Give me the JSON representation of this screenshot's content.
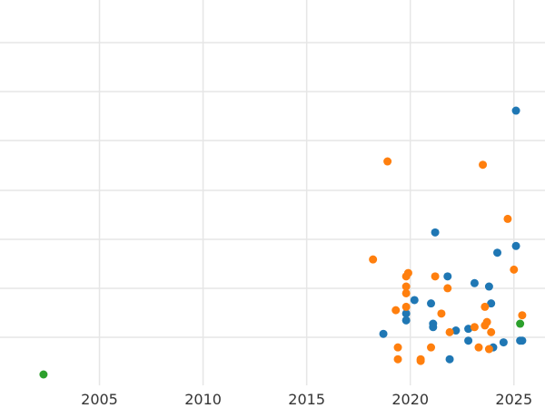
{
  "chart_data": {
    "type": "scatter",
    "title": "",
    "xlabel": "",
    "ylabel": "",
    "xlim": [
      2000.2,
      2026.5
    ],
    "ylim": [
      0,
      1
    ],
    "grid": true,
    "legend": "none",
    "x_ticks": [
      2005,
      2010,
      2015,
      2020,
      2025
    ],
    "x_tick_labels": [
      "2005",
      "2010",
      "2015",
      "2020",
      "2025"
    ],
    "y_gridlines": [
      0.06,
      0.22,
      0.38,
      0.54,
      0.7,
      0.86,
      1.0
    ],
    "series": [
      {
        "color": "#1f77b4",
        "points": [
          [
            2025.1,
            0.78
          ],
          [
            2021.2,
            0.42
          ],
          [
            2024.2,
            0.36
          ],
          [
            2025.1,
            0.38
          ],
          [
            2021.8,
            0.29
          ],
          [
            2023.1,
            0.27
          ],
          [
            2023.8,
            0.26
          ],
          [
            2020.2,
            0.22
          ],
          [
            2021.0,
            0.21
          ],
          [
            2023.9,
            0.21
          ],
          [
            2019.8,
            0.18
          ],
          [
            2019.8,
            0.16
          ],
          [
            2021.1,
            0.15
          ],
          [
            2021.1,
            0.14
          ],
          [
            2022.2,
            0.13
          ],
          [
            2022.8,
            0.135
          ],
          [
            2018.7,
            0.12
          ],
          [
            2022.8,
            0.1
          ],
          [
            2024.5,
            0.095
          ],
          [
            2025.3,
            0.1
          ],
          [
            2025.4,
            0.1
          ],
          [
            2024.0,
            0.08
          ],
          [
            2021.9,
            0.045
          ]
        ]
      },
      {
        "color": "#ff7f0e",
        "points": [
          [
            2018.9,
            0.63
          ],
          [
            2023.5,
            0.62
          ],
          [
            2024.7,
            0.46
          ],
          [
            2018.2,
            0.34
          ],
          [
            2025.0,
            0.31
          ],
          [
            2019.9,
            0.3
          ],
          [
            2019.8,
            0.29
          ],
          [
            2021.2,
            0.29
          ],
          [
            2019.8,
            0.26
          ],
          [
            2021.8,
            0.255
          ],
          [
            2019.8,
            0.24
          ],
          [
            2023.6,
            0.2
          ],
          [
            2019.3,
            0.19
          ],
          [
            2019.8,
            0.2
          ],
          [
            2021.5,
            0.18
          ],
          [
            2025.4,
            0.175
          ],
          [
            2023.7,
            0.155
          ],
          [
            2023.6,
            0.145
          ],
          [
            2023.1,
            0.14
          ],
          [
            2021.9,
            0.125
          ],
          [
            2023.9,
            0.125
          ],
          [
            2019.4,
            0.08
          ],
          [
            2021.0,
            0.08
          ],
          [
            2023.3,
            0.08
          ],
          [
            2023.8,
            0.075
          ],
          [
            2019.4,
            0.045
          ],
          [
            2020.5,
            0.045
          ],
          [
            2020.5,
            0.04
          ]
        ]
      },
      {
        "color": "#2ca02c",
        "points": [
          [
            2002.3,
            0.0
          ],
          [
            2025.3,
            0.15
          ]
        ]
      }
    ]
  }
}
